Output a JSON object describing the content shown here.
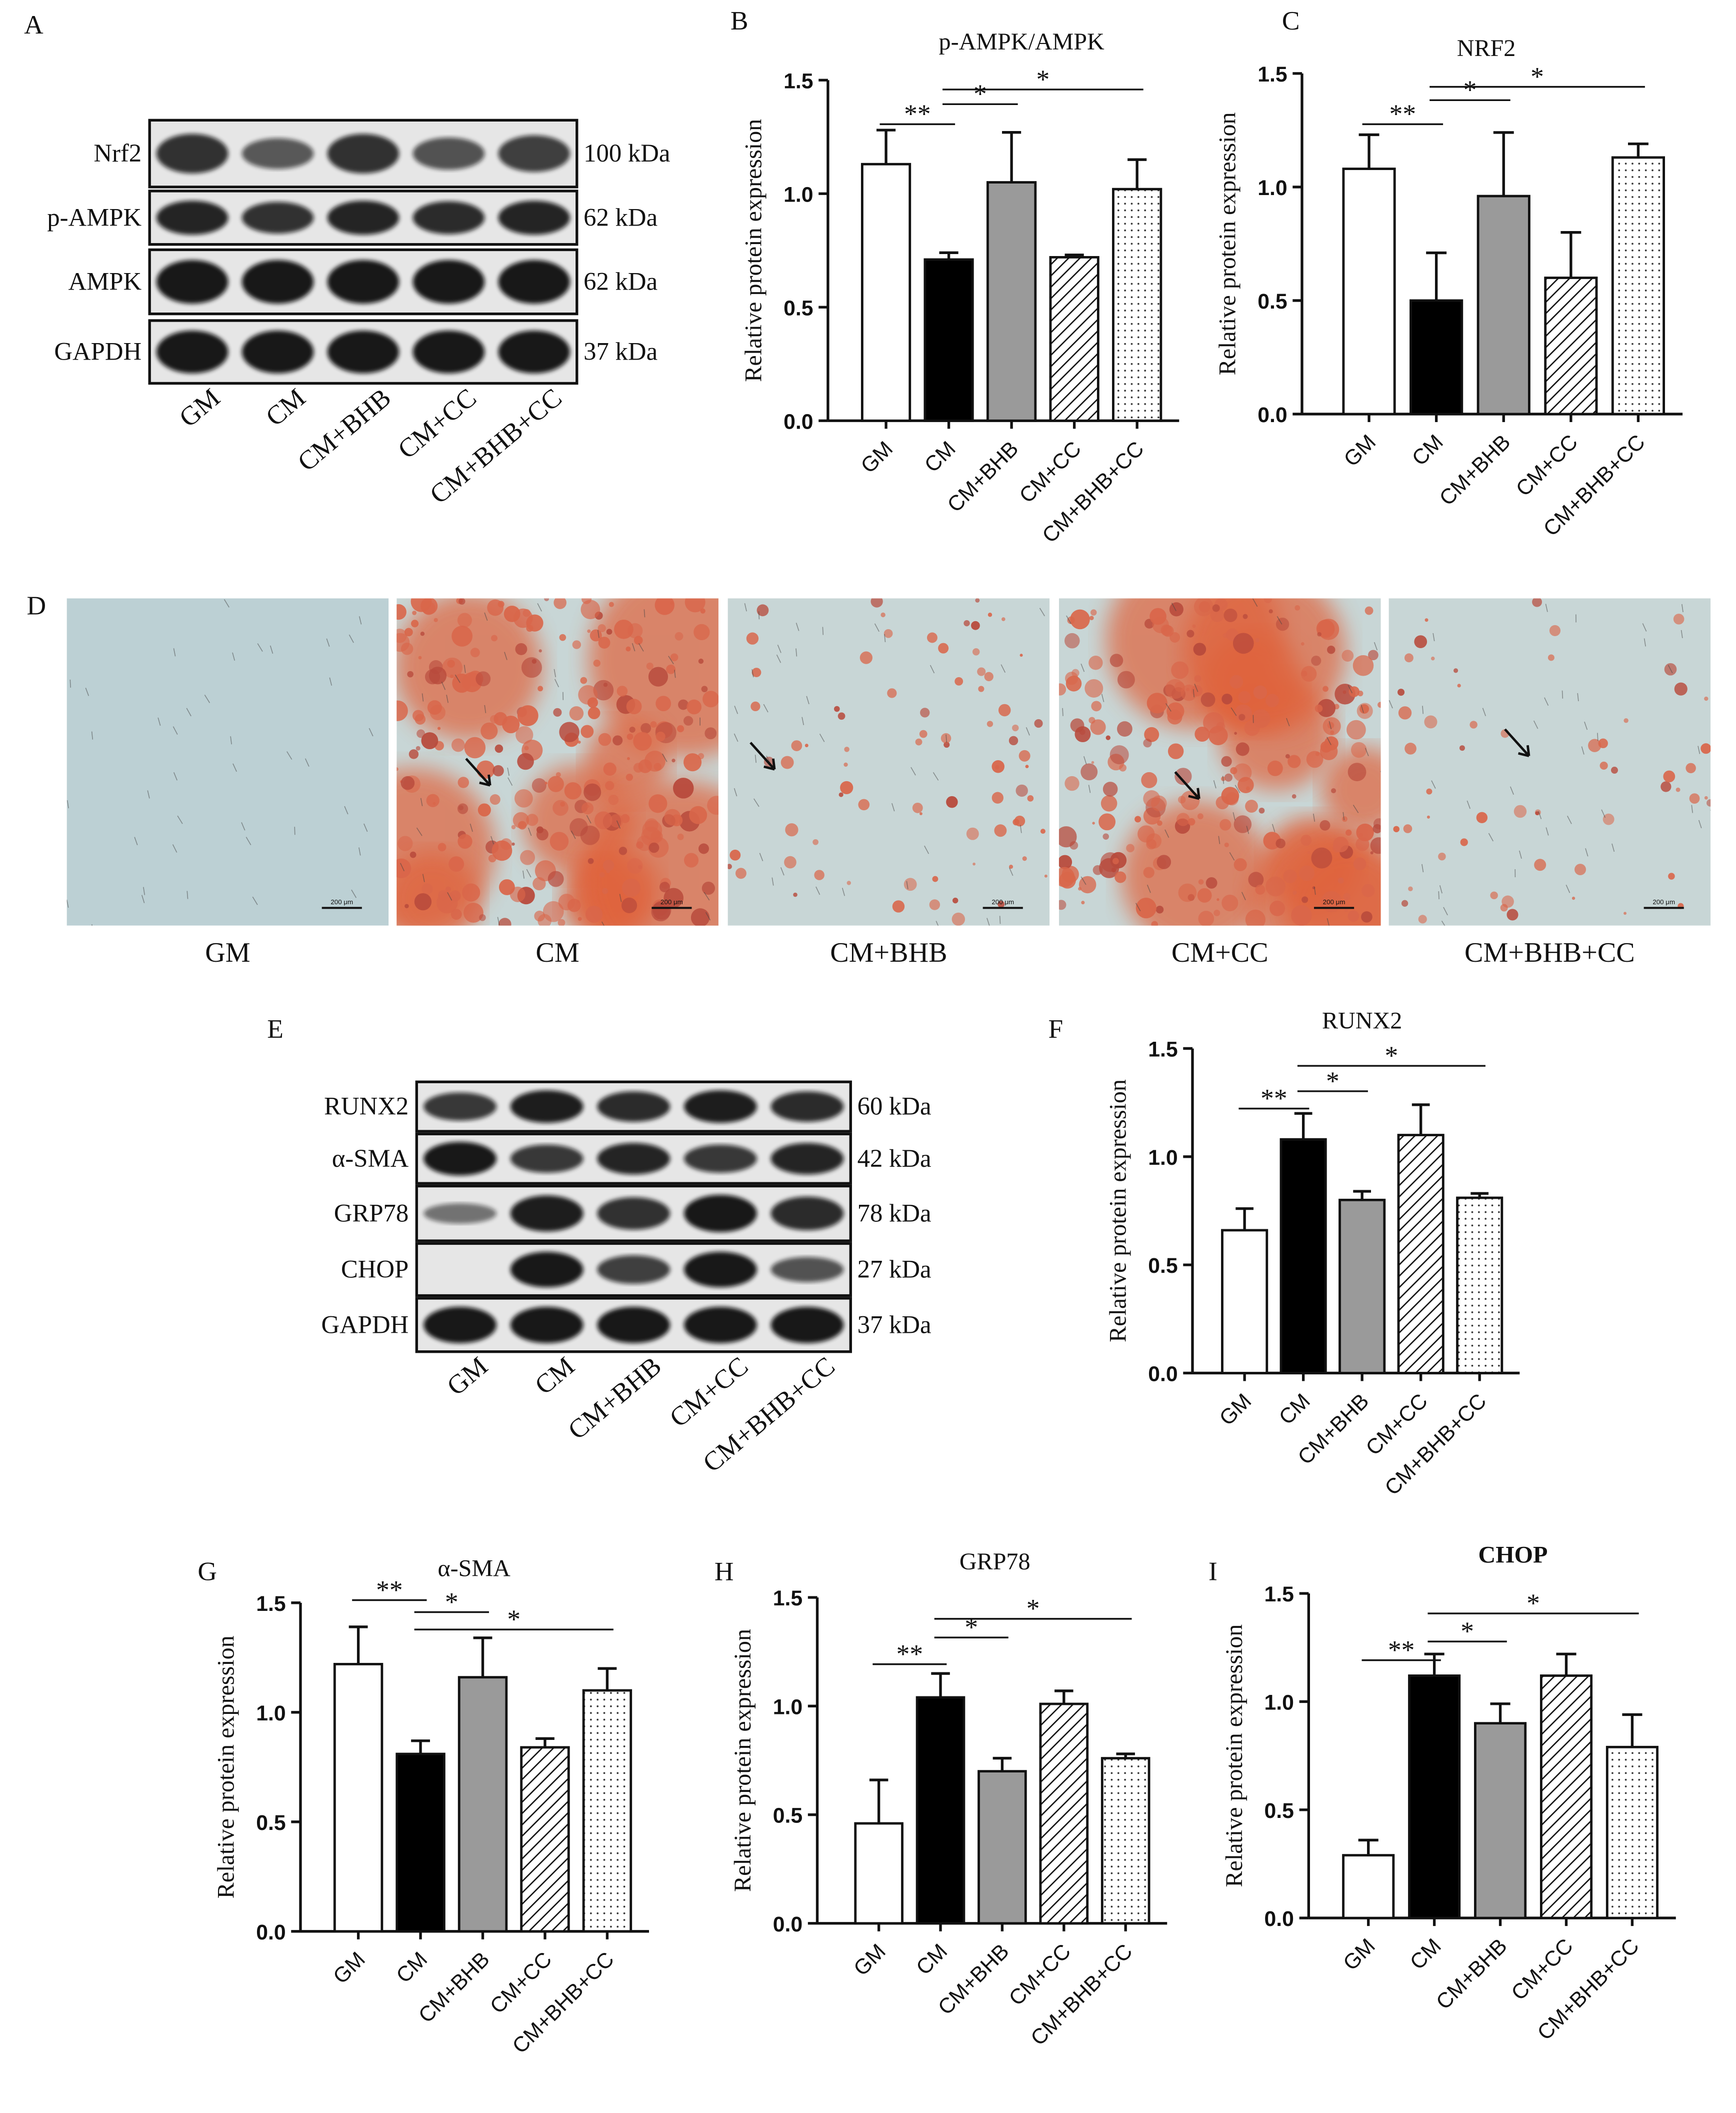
{
  "blots": [
    {
      "panel": "A",
      "rows": [
        {
          "label": "Nrf2",
          "size": "100 kDa"
        },
        {
          "label": "p-AMPK",
          "size": "62 kDa"
        },
        {
          "label": "AMPK",
          "size": "62 kDa"
        },
        {
          "label": "GAPDH",
          "size": "37 kDa"
        }
      ],
      "lanes": [
        "GM",
        "CM",
        "CM+BHB",
        "CM+CC",
        "CM+BHB+CC"
      ]
    },
    {
      "panel": "E",
      "rows": [
        {
          "label": "RUNX2",
          "size": "60 kDa"
        },
        {
          "label": "α-SMA",
          "size": "42 kDa"
        },
        {
          "label": "GRP78",
          "size": "78 kDa"
        },
        {
          "label": "CHOP",
          "size": "27 kDa"
        },
        {
          "label": "GAPDH",
          "size": "37 kDa"
        }
      ],
      "lanes": [
        "GM",
        "CM",
        "CM+BHB",
        "CM+CC",
        "CM+BHB+CC"
      ]
    }
  ],
  "micrographs": {
    "panel": "D",
    "scale_bar": "200 μm",
    "labels": [
      "GM",
      "CM",
      "CM+BHB",
      "CM+CC",
      "CM+BHB+CC"
    ]
  },
  "chart_data": [
    {
      "type": "bar",
      "panel": "B",
      "title": "p-AMPK/AMPK",
      "y_label": "Relative protein expression",
      "categories": [
        "GM",
        "CM",
        "CM+BHB",
        "CM+CC",
        "CM+BHB+CC"
      ],
      "values": [
        1.13,
        0.71,
        1.05,
        0.72,
        1.02
      ],
      "errors": [
        0.15,
        0.03,
        0.22,
        0.01,
        0.13
      ],
      "bar_styles": [
        "white",
        "black",
        "gray",
        "hatch",
        "dots"
      ],
      "ylim": [
        0,
        1.5
      ],
      "yticks": [
        {
          "value": 0,
          "label": "0.0"
        },
        0.5,
        {
          "value": 1,
          "label": "1.0"
        },
        1.5
      ],
      "annotations": [
        {
          "from": 0,
          "to": 1,
          "label": "**"
        },
        {
          "from": 1,
          "to": 2,
          "label": "*"
        },
        {
          "from": 1,
          "to": 4,
          "label": "*"
        }
      ]
    },
    {
      "type": "bar",
      "panel": "C",
      "title": "NRF2",
      "y_label": "Relative protein expression",
      "categories": [
        "GM",
        "CM",
        "CM+BHB",
        "CM+CC",
        "CM+BHB+CC"
      ],
      "values": [
        1.08,
        0.5,
        0.96,
        0.6,
        1.13
      ],
      "errors": [
        0.15,
        0.21,
        0.28,
        0.2,
        0.06
      ],
      "bar_styles": [
        "white",
        "black",
        "gray",
        "hatch",
        "dots"
      ],
      "ylim": [
        0,
        1.5
      ],
      "yticks": [
        {
          "value": 0,
          "label": "0.0"
        },
        0.5,
        {
          "value": 1,
          "label": "1.0"
        },
        1.5
      ],
      "annotations": [
        {
          "from": 0,
          "to": 1,
          "label": "**"
        },
        {
          "from": 1,
          "to": 2,
          "label": "*"
        },
        {
          "from": 1,
          "to": 4,
          "label": "*"
        }
      ]
    },
    {
      "type": "bar",
      "panel": "F",
      "title": "RUNX2",
      "y_label": "Relative protein expression",
      "categories": [
        "GM",
        "CM",
        "CM+BHB",
        "CM+CC",
        "CM+BHB+CC"
      ],
      "values": [
        0.66,
        1.08,
        0.8,
        1.1,
        0.81
      ],
      "errors": [
        0.1,
        0.12,
        0.04,
        0.14,
        0.02
      ],
      "bar_styles": [
        "white",
        "black",
        "gray",
        "hatch",
        "dots"
      ],
      "ylim": [
        0,
        1.5
      ],
      "yticks": [
        {
          "value": 0,
          "label": "0.0"
        },
        0.5,
        {
          "value": 1,
          "label": "1.0"
        },
        1.5
      ],
      "annotations": [
        {
          "from": 0,
          "to": 1,
          "label": "**"
        },
        {
          "from": 1,
          "to": 2,
          "label": "*"
        },
        {
          "from": 1,
          "to": 4,
          "label": "*"
        }
      ]
    },
    {
      "type": "bar",
      "panel": "G",
      "title": "α-SMA",
      "y_label": "Relative protein expression",
      "categories": [
        "GM",
        "CM",
        "CM+BHB",
        "CM+CC",
        "CM+BHB+CC"
      ],
      "values": [
        1.22,
        0.81,
        1.16,
        0.84,
        1.1
      ],
      "errors": [
        0.17,
        0.06,
        0.18,
        0.04,
        0.1
      ],
      "bar_styles": [
        "white",
        "black",
        "gray",
        "hatch",
        "dots"
      ],
      "ylim": [
        0,
        1.5
      ],
      "yticks": [
        {
          "value": 0,
          "label": "0.0"
        },
        0.5,
        {
          "value": 1,
          "label": "1.0"
        },
        1.5
      ],
      "annotations": [
        {
          "from": 0,
          "to": 1,
          "label": "**"
        },
        {
          "from": 1,
          "to": 2,
          "label": "*"
        },
        {
          "from": 1,
          "to": 4,
          "label": "*"
        }
      ]
    },
    {
      "type": "bar",
      "panel": "H",
      "title": "GRP78",
      "y_label": "Relative protein expression",
      "categories": [
        "GM",
        "CM",
        "CM+BHB",
        "CM+CC",
        "CM+BHB+CC"
      ],
      "values": [
        0.46,
        1.04,
        0.7,
        1.01,
        0.76
      ],
      "errors": [
        0.2,
        0.11,
        0.06,
        0.06,
        0.02
      ],
      "bar_styles": [
        "white",
        "black",
        "gray",
        "hatch",
        "dots"
      ],
      "ylim": [
        0,
        1.5
      ],
      "yticks": [
        {
          "value": 0,
          "label": "0.0"
        },
        0.5,
        {
          "value": 1,
          "label": "1.0"
        },
        1.5
      ],
      "annotations": [
        {
          "from": 0,
          "to": 1,
          "label": "**"
        },
        {
          "from": 1,
          "to": 2,
          "label": "*"
        },
        {
          "from": 1,
          "to": 4,
          "label": "*"
        }
      ]
    },
    {
      "type": "bar",
      "panel": "I",
      "title": "CHOP",
      "title_bold": true,
      "y_label": "Relative protein expression",
      "categories": [
        "GM",
        "CM",
        "CM+BHB",
        "CM+CC",
        "CM+BHB+CC"
      ],
      "values": [
        0.29,
        1.12,
        0.9,
        1.12,
        0.79
      ],
      "errors": [
        0.07,
        0.1,
        0.09,
        0.1,
        0.15
      ],
      "bar_styles": [
        "white",
        "black",
        "gray",
        "hatch",
        "dots"
      ],
      "ylim": [
        0,
        1.5
      ],
      "yticks": [
        {
          "value": 0,
          "label": "0.0"
        },
        0.5,
        {
          "value": 1,
          "label": "1.0"
        },
        1.5
      ],
      "annotations": [
        {
          "from": 0,
          "to": 1,
          "label": "**"
        },
        {
          "from": 1,
          "to": 2,
          "label": "*"
        },
        {
          "from": 1,
          "to": 4,
          "label": "*"
        }
      ]
    }
  ]
}
